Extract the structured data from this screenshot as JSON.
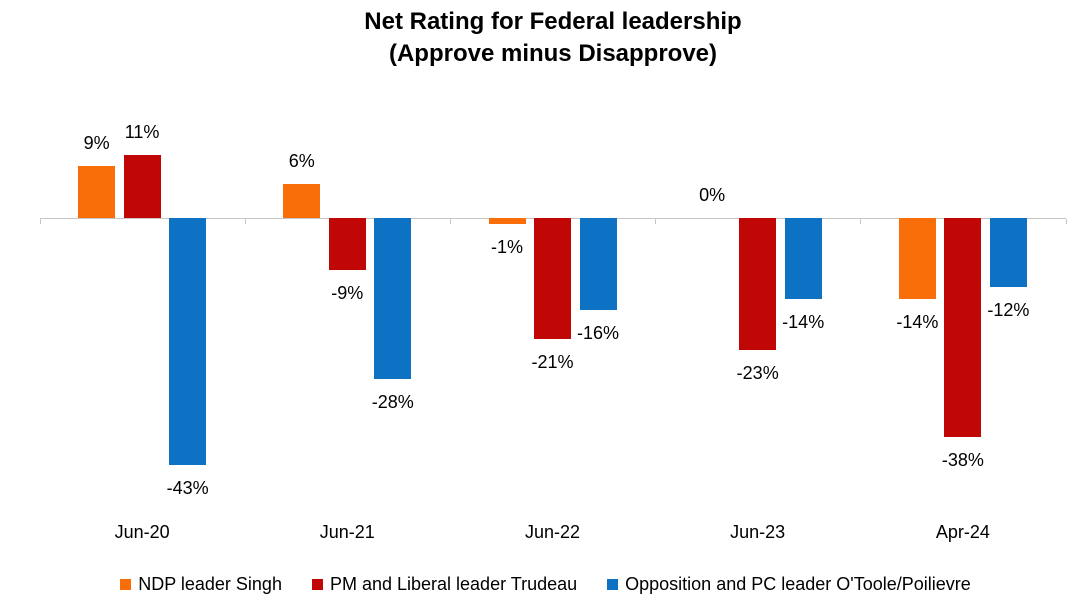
{
  "title": {
    "line1": "Net Rating for Federal leadership",
    "line2": "(Approve minus Disapprove)"
  },
  "chart_data": {
    "type": "bar",
    "title": "Net Rating for Federal leadership (Approve minus Disapprove)",
    "categories": [
      "Jun-20",
      "Jun-21",
      "Jun-22",
      "Jun-23",
      "Apr-24"
    ],
    "series": [
      {
        "name": "NDP leader Singh",
        "color": "#FA6E09",
        "values": [
          9,
          6,
          -1,
          0,
          -14
        ]
      },
      {
        "name": "PM and Liberal leader Trudeau",
        "color": "#C10606",
        "values": [
          11,
          -9,
          -21,
          -23,
          -38
        ]
      },
      {
        "name": "Opposition and PC leader O'Toole/Poilievre",
        "color": "#0D72C4",
        "values": [
          -43,
          -28,
          -16,
          -14,
          -12
        ]
      }
    ],
    "value_suffix": "%",
    "data_labels": true,
    "ylim": [
      -48,
      14
    ],
    "grid": false,
    "legend_position": "bottom",
    "axis_color": "#C6C6C6",
    "background": "#FFFFFF",
    "text_color": "#000000"
  }
}
